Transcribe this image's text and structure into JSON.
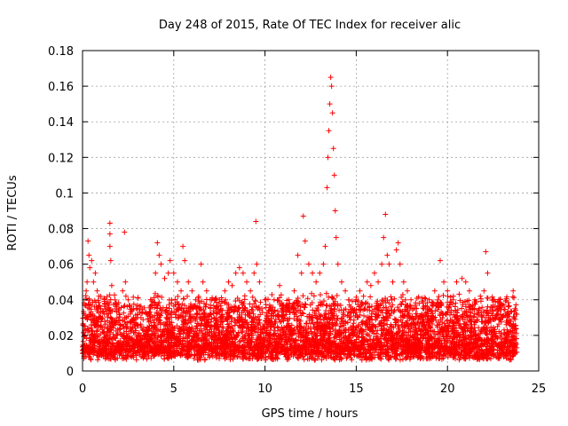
{
  "chart_data": {
    "type": "scatter",
    "title": "Day 248 of 2015, Rate Of TEC Index for receiver alic",
    "xlabel": "GPS time / hours",
    "ylabel": "ROTI / TECUs",
    "xlim": [
      0,
      25
    ],
    "ylim": [
      0,
      0.18
    ],
    "xticks": [
      0,
      5,
      10,
      15,
      20,
      25
    ],
    "yticks": [
      0,
      0.02,
      0.04,
      0.06,
      0.08,
      0.1,
      0.12,
      0.14,
      0.16,
      0.18
    ],
    "xtick_labels": [
      "0",
      "5",
      "10",
      "15",
      "20",
      "25"
    ],
    "ytick_labels": [
      "0",
      "0.02",
      "0.04",
      "0.06",
      "0.08",
      "0.1",
      "0.12",
      "0.14",
      "0.16",
      "0.18"
    ],
    "grid": true,
    "marker": "+",
    "color": "#ff0000",
    "series": [
      {
        "name": "ROTI",
        "points": [
          [
            0.05,
            0.012
          ],
          [
            0.1,
            0.02
          ],
          [
            0.15,
            0.03
          ],
          [
            0.2,
            0.045
          ],
          [
            0.25,
            0.05
          ],
          [
            0.3,
            0.073
          ],
          [
            0.35,
            0.065
          ],
          [
            0.4,
            0.058
          ],
          [
            0.5,
            0.062
          ],
          [
            0.6,
            0.05
          ],
          [
            0.7,
            0.055
          ],
          [
            0.8,
            0.045
          ],
          [
            0.9,
            0.042
          ],
          [
            1.0,
            0.035
          ],
          [
            1.2,
            0.032
          ],
          [
            1.5,
            0.083
          ],
          [
            1.5,
            0.077
          ],
          [
            1.5,
            0.07
          ],
          [
            1.55,
            0.062
          ],
          [
            1.6,
            0.048
          ],
          [
            1.8,
            0.038
          ],
          [
            2.0,
            0.035
          ],
          [
            2.2,
            0.045
          ],
          [
            2.3,
            0.078
          ],
          [
            2.35,
            0.05
          ],
          [
            2.5,
            0.04
          ],
          [
            2.8,
            0.03
          ],
          [
            3.0,
            0.035
          ],
          [
            3.2,
            0.03
          ],
          [
            3.5,
            0.032
          ],
          [
            3.8,
            0.04
          ],
          [
            4.0,
            0.055
          ],
          [
            4.1,
            0.072
          ],
          [
            4.2,
            0.065
          ],
          [
            4.3,
            0.06
          ],
          [
            4.5,
            0.052
          ],
          [
            4.7,
            0.055
          ],
          [
            4.8,
            0.062
          ],
          [
            5.0,
            0.055
          ],
          [
            5.2,
            0.05
          ],
          [
            5.4,
            0.045
          ],
          [
            5.5,
            0.07
          ],
          [
            5.6,
            0.062
          ],
          [
            5.8,
            0.05
          ],
          [
            6.0,
            0.045
          ],
          [
            6.2,
            0.04
          ],
          [
            6.5,
            0.06
          ],
          [
            6.6,
            0.05
          ],
          [
            6.8,
            0.045
          ],
          [
            7.0,
            0.04
          ],
          [
            7.3,
            0.035
          ],
          [
            7.5,
            0.04
          ],
          [
            7.8,
            0.045
          ],
          [
            8.0,
            0.05
          ],
          [
            8.2,
            0.048
          ],
          [
            8.4,
            0.055
          ],
          [
            8.6,
            0.058
          ],
          [
            8.8,
            0.055
          ],
          [
            9.0,
            0.05
          ],
          [
            9.2,
            0.045
          ],
          [
            9.4,
            0.055
          ],
          [
            9.5,
            0.084
          ],
          [
            9.55,
            0.06
          ],
          [
            9.7,
            0.05
          ],
          [
            10.0,
            0.04
          ],
          [
            10.3,
            0.035
          ],
          [
            10.5,
            0.04
          ],
          [
            10.8,
            0.048
          ],
          [
            11.0,
            0.035
          ],
          [
            11.3,
            0.04
          ],
          [
            11.6,
            0.045
          ],
          [
            11.8,
            0.065
          ],
          [
            12.0,
            0.055
          ],
          [
            12.1,
            0.087
          ],
          [
            12.2,
            0.073
          ],
          [
            12.4,
            0.06
          ],
          [
            12.6,
            0.055
          ],
          [
            12.8,
            0.05
          ],
          [
            13.0,
            0.055
          ],
          [
            13.2,
            0.06
          ],
          [
            13.3,
            0.07
          ],
          [
            13.4,
            0.103
          ],
          [
            13.45,
            0.12
          ],
          [
            13.5,
            0.135
          ],
          [
            13.55,
            0.15
          ],
          [
            13.6,
            0.165
          ],
          [
            13.65,
            0.16
          ],
          [
            13.7,
            0.145
          ],
          [
            13.75,
            0.125
          ],
          [
            13.8,
            0.11
          ],
          [
            13.85,
            0.09
          ],
          [
            13.9,
            0.075
          ],
          [
            14.0,
            0.06
          ],
          [
            14.2,
            0.05
          ],
          [
            14.4,
            0.045
          ],
          [
            14.6,
            0.04
          ],
          [
            14.8,
            0.035
          ],
          [
            15.0,
            0.04
          ],
          [
            15.2,
            0.045
          ],
          [
            15.4,
            0.042
          ],
          [
            15.6,
            0.05
          ],
          [
            15.8,
            0.048
          ],
          [
            16.0,
            0.055
          ],
          [
            16.2,
            0.05
          ],
          [
            16.4,
            0.06
          ],
          [
            16.5,
            0.075
          ],
          [
            16.6,
            0.088
          ],
          [
            16.7,
            0.065
          ],
          [
            16.8,
            0.06
          ],
          [
            17.0,
            0.05
          ],
          [
            17.2,
            0.068
          ],
          [
            17.3,
            0.072
          ],
          [
            17.4,
            0.06
          ],
          [
            17.6,
            0.05
          ],
          [
            17.8,
            0.045
          ],
          [
            18.0,
            0.04
          ],
          [
            18.3,
            0.035
          ],
          [
            18.6,
            0.032
          ],
          [
            19.0,
            0.04
          ],
          [
            19.3,
            0.045
          ],
          [
            19.6,
            0.062
          ],
          [
            19.8,
            0.05
          ],
          [
            20.0,
            0.045
          ],
          [
            20.3,
            0.04
          ],
          [
            20.5,
            0.05
          ],
          [
            20.8,
            0.052
          ],
          [
            21.0,
            0.05
          ],
          [
            21.2,
            0.045
          ],
          [
            21.5,
            0.04
          ],
          [
            21.8,
            0.042
          ],
          [
            22.0,
            0.045
          ],
          [
            22.1,
            0.067
          ],
          [
            22.2,
            0.055
          ],
          [
            22.5,
            0.04
          ],
          [
            22.8,
            0.035
          ],
          [
            23.0,
            0.03
          ],
          [
            23.3,
            0.032
          ],
          [
            23.6,
            0.045
          ],
          [
            23.7,
            0.035
          ]
        ]
      }
    ]
  }
}
